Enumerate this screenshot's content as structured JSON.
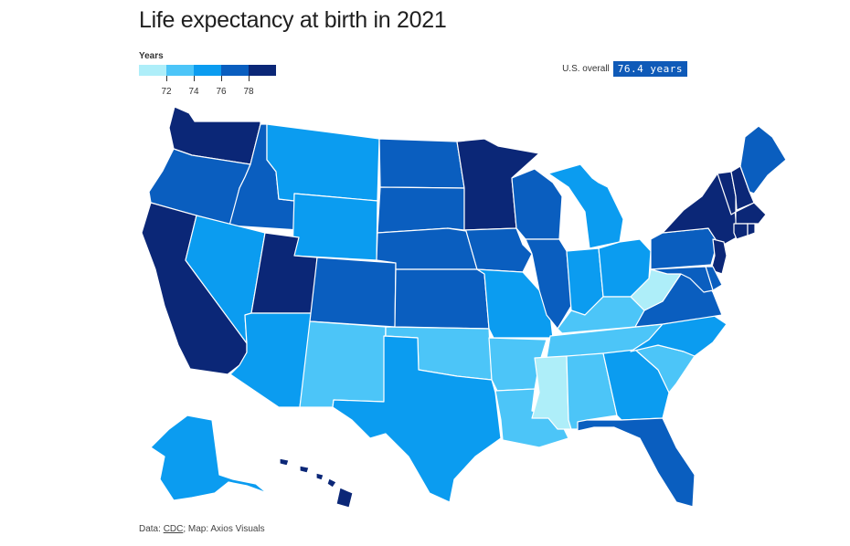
{
  "title": "Life expectancy at birth in 2021",
  "legend": {
    "label": "Years",
    "ticks": [
      "72",
      "74",
      "76",
      "78"
    ],
    "colors": [
      "#aeeef9",
      "#4cc5f8",
      "#0b9cf0",
      "#0a5ebf",
      "#0b2777"
    ]
  },
  "us_overall": {
    "label": "U.S. overall",
    "value": "76.4 years"
  },
  "source": {
    "prefix": "Data: ",
    "link": "CDC",
    "suffix": "; Map: Axios Visuals"
  },
  "states": [
    {
      "name": "Washington",
      "bin": 4
    },
    {
      "name": "Oregon",
      "bin": 3
    },
    {
      "name": "California",
      "bin": 4
    },
    {
      "name": "Idaho",
      "bin": 3
    },
    {
      "name": "Nevada",
      "bin": 2
    },
    {
      "name": "Montana",
      "bin": 2
    },
    {
      "name": "Wyoming",
      "bin": 2
    },
    {
      "name": "Utah",
      "bin": 4
    },
    {
      "name": "Arizona",
      "bin": 2
    },
    {
      "name": "Colorado",
      "bin": 3
    },
    {
      "name": "New Mexico",
      "bin": 1
    },
    {
      "name": "North Dakota",
      "bin": 3
    },
    {
      "name": "South Dakota",
      "bin": 3
    },
    {
      "name": "Nebraska",
      "bin": 3
    },
    {
      "name": "Kansas",
      "bin": 3
    },
    {
      "name": "Oklahoma",
      "bin": 1
    },
    {
      "name": "Texas",
      "bin": 2
    },
    {
      "name": "Minnesota",
      "bin": 4
    },
    {
      "name": "Iowa",
      "bin": 3
    },
    {
      "name": "Missouri",
      "bin": 2
    },
    {
      "name": "Arkansas",
      "bin": 1
    },
    {
      "name": "Louisiana",
      "bin": 1
    },
    {
      "name": "Wisconsin",
      "bin": 3
    },
    {
      "name": "Illinois",
      "bin": 3
    },
    {
      "name": "Michigan",
      "bin": 2
    },
    {
      "name": "Indiana",
      "bin": 2
    },
    {
      "name": "Ohio",
      "bin": 2
    },
    {
      "name": "Kentucky",
      "bin": 1
    },
    {
      "name": "Tennessee",
      "bin": 1
    },
    {
      "name": "Mississippi",
      "bin": 0
    },
    {
      "name": "Alabama",
      "bin": 1
    },
    {
      "name": "Georgia",
      "bin": 2
    },
    {
      "name": "Florida",
      "bin": 3
    },
    {
      "name": "South Carolina",
      "bin": 1
    },
    {
      "name": "North Carolina",
      "bin": 2
    },
    {
      "name": "Virginia",
      "bin": 3
    },
    {
      "name": "West Virginia",
      "bin": 0
    },
    {
      "name": "Pennsylvania",
      "bin": 3
    },
    {
      "name": "New York",
      "bin": 4
    },
    {
      "name": "Vermont",
      "bin": 4
    },
    {
      "name": "New Hampshire",
      "bin": 4
    },
    {
      "name": "Maine",
      "bin": 3
    },
    {
      "name": "Massachusetts",
      "bin": 4
    },
    {
      "name": "Connecticut",
      "bin": 4
    },
    {
      "name": "Rhode Island",
      "bin": 4
    },
    {
      "name": "New Jersey",
      "bin": 4
    },
    {
      "name": "Delaware",
      "bin": 3
    },
    {
      "name": "Maryland",
      "bin": 3
    },
    {
      "name": "Alaska",
      "bin": 2
    },
    {
      "name": "Hawaii",
      "bin": 4
    }
  ]
}
